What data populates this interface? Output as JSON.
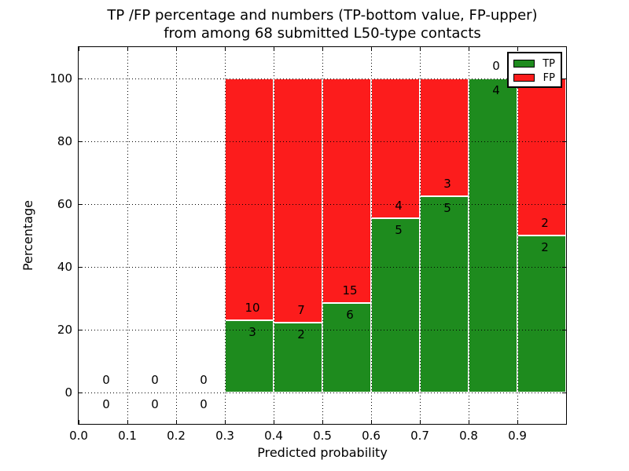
{
  "figure": {
    "title_line1": "TP /FP percentage and numbers (TP-bottom value, FP-upper)",
    "title_line2": "from among 68 submitted L50-type contacts"
  },
  "chart_data": {
    "type": "bar",
    "stacked": true,
    "title": "TP /FP percentage and numbers (TP-bottom value, FP-upper)\nfrom among 68 submitted L50-type contacts",
    "xlabel": "Predicted probability",
    "ylabel": "Percentage",
    "xlim": [
      0.0,
      1.0
    ],
    "ylim": [
      -10,
      110
    ],
    "grid": true,
    "total_contacts": 68,
    "x_ticks": [
      {
        "value": 0.0,
        "label": "0.0"
      },
      {
        "value": 0.1,
        "label": "0.1"
      },
      {
        "value": 0.2,
        "label": "0.2"
      },
      {
        "value": 0.3,
        "label": "0.3"
      },
      {
        "value": 0.4,
        "label": "0.4"
      },
      {
        "value": 0.5,
        "label": "0.5"
      },
      {
        "value": 0.6,
        "label": "0.6"
      },
      {
        "value": 0.7,
        "label": "0.7"
      },
      {
        "value": 0.8,
        "label": "0.8"
      },
      {
        "value": 0.9,
        "label": "0.9"
      }
    ],
    "y_ticks": [
      {
        "value": 0,
        "label": "0"
      },
      {
        "value": 20,
        "label": "20"
      },
      {
        "value": 40,
        "label": "40"
      },
      {
        "value": 60,
        "label": "60"
      },
      {
        "value": 80,
        "label": "80"
      },
      {
        "value": 100,
        "label": "100"
      }
    ],
    "legend": {
      "position": "upper right",
      "entries": [
        {
          "label": "TP",
          "color": "#1e8b1e"
        },
        {
          "label": "FP",
          "color": "#fc1c1c"
        }
      ]
    },
    "bins": [
      {
        "x_start": 0.0,
        "x_end": 0.1,
        "tp_count": 0,
        "fp_count": 0,
        "tp_pct": 0,
        "fp_pct": 0
      },
      {
        "x_start": 0.1,
        "x_end": 0.2,
        "tp_count": 0,
        "fp_count": 0,
        "tp_pct": 0,
        "fp_pct": 0
      },
      {
        "x_start": 0.2,
        "x_end": 0.3,
        "tp_count": 0,
        "fp_count": 0,
        "tp_pct": 0,
        "fp_pct": 0
      },
      {
        "x_start": 0.3,
        "x_end": 0.4,
        "tp_count": 3,
        "fp_count": 10,
        "tp_pct": 23.08,
        "fp_pct": 76.92
      },
      {
        "x_start": 0.4,
        "x_end": 0.5,
        "tp_count": 2,
        "fp_count": 7,
        "tp_pct": 22.22,
        "fp_pct": 77.78
      },
      {
        "x_start": 0.5,
        "x_end": 0.6,
        "tp_count": 6,
        "fp_count": 15,
        "tp_pct": 28.57,
        "fp_pct": 71.43
      },
      {
        "x_start": 0.6,
        "x_end": 0.7,
        "tp_count": 5,
        "fp_count": 4,
        "tp_pct": 55.56,
        "fp_pct": 44.44
      },
      {
        "x_start": 0.7,
        "x_end": 0.8,
        "tp_count": 5,
        "fp_count": 3,
        "tp_pct": 62.5,
        "fp_pct": 37.5
      },
      {
        "x_start": 0.8,
        "x_end": 0.9,
        "tp_count": 4,
        "fp_count": 0,
        "tp_pct": 100,
        "fp_pct": 0
      },
      {
        "x_start": 0.9,
        "x_end": 1.0,
        "tp_count": 2,
        "fp_count": 2,
        "tp_pct": 50,
        "fp_pct": 50
      }
    ]
  }
}
